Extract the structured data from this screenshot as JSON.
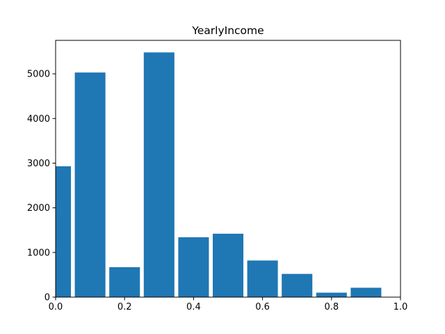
{
  "chart_data": {
    "type": "bar",
    "title": "YearlyIncome",
    "xlabel": "",
    "ylabel": "",
    "xlim": [
      0,
      1.0
    ],
    "ylim": [
      0,
      5750
    ],
    "grid": false,
    "bar_color": "#1f77b4",
    "bars": [
      {
        "x0": -0.0444,
        "x1": 0.0444,
        "value": 2930
      },
      {
        "x0": 0.0556,
        "x1": 0.1444,
        "value": 5030
      },
      {
        "x0": 0.1556,
        "x1": 0.2444,
        "value": 670
      },
      {
        "x0": 0.2556,
        "x1": 0.3444,
        "value": 5480
      },
      {
        "x0": 0.3556,
        "x1": 0.4444,
        "value": 1340
      },
      {
        "x0": 0.4556,
        "x1": 0.5444,
        "value": 1420
      },
      {
        "x0": 0.5556,
        "x1": 0.6444,
        "value": 820
      },
      {
        "x0": 0.6556,
        "x1": 0.7444,
        "value": 520
      },
      {
        "x0": 0.7556,
        "x1": 0.8444,
        "value": 100
      },
      {
        "x0": 0.8556,
        "x1": 0.9444,
        "value": 210
      }
    ],
    "x_ticks": [
      0.0,
      0.2,
      0.4,
      0.6,
      0.8,
      1.0
    ],
    "x_tick_labels": [
      "0.0",
      "0.2",
      "0.4",
      "0.6",
      "0.8",
      "1.0"
    ],
    "y_ticks": [
      0,
      1000,
      2000,
      3000,
      4000,
      5000
    ],
    "y_tick_labels": [
      "0",
      "1000",
      "2000",
      "3000",
      "4000",
      "5000"
    ]
  }
}
